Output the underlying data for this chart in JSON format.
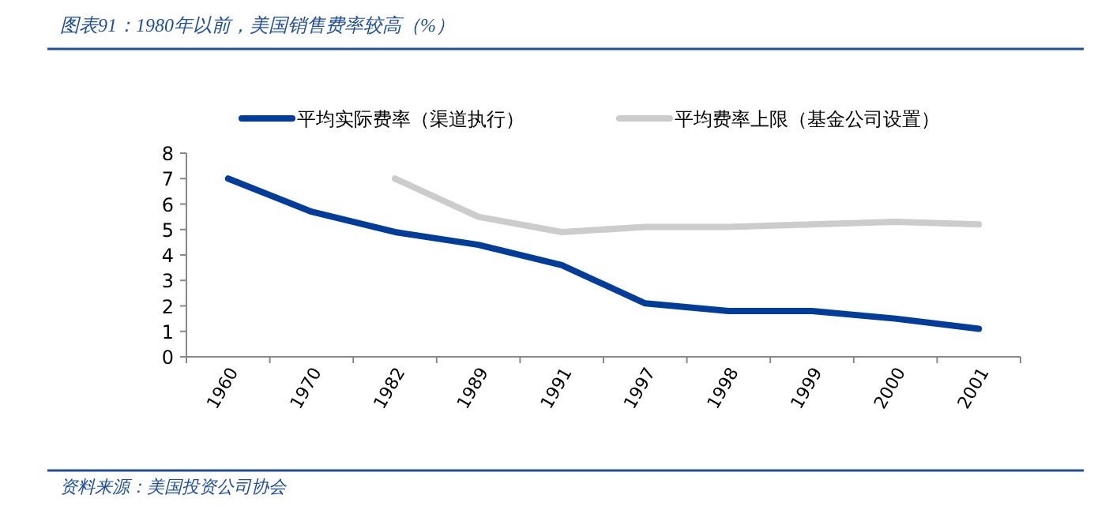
{
  "chart_data": {
    "type": "line",
    "title": "图表91：1980年以前，美国销售费率较高（%）",
    "categories": [
      "1960",
      "1970",
      "1982",
      "1989",
      "1991",
      "1997",
      "1998",
      "1999",
      "2000",
      "2001"
    ],
    "series": [
      {
        "name": "平均实际费率（渠道执行）",
        "color": "#003d9b",
        "values": [
          7.0,
          5.7,
          4.9,
          4.4,
          3.6,
          2.1,
          1.8,
          1.8,
          1.5,
          1.1
        ]
      },
      {
        "name": "平均费率上限（基金公司设置）",
        "color": "#cccccc",
        "values": [
          null,
          null,
          7.0,
          5.5,
          4.9,
          5.1,
          5.1,
          5.2,
          5.3,
          5.2
        ]
      }
    ],
    "ylim": [
      0,
      8
    ],
    "yticks": [
      0,
      1,
      2,
      3,
      4,
      5,
      6,
      7,
      8
    ],
    "grid": false,
    "legend": "top",
    "marker": "none",
    "line_style": "solid",
    "annotations": [
      "资料来源：美国投资公司协会"
    ]
  }
}
